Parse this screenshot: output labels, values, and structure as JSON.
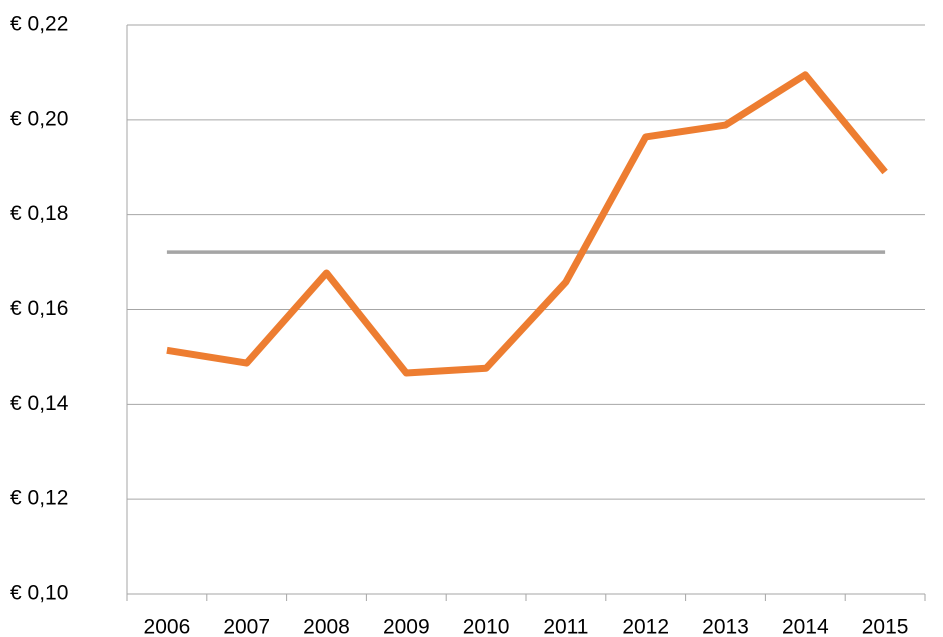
{
  "chart_data": {
    "type": "line",
    "categories": [
      "2006",
      "2007",
      "2008",
      "2009",
      "2010",
      "2011",
      "2012",
      "2013",
      "2014",
      "2015"
    ],
    "series": [
      {
        "color": "#ed7d31",
        "values": [
          0.1514,
          0.1487,
          0.1677,
          0.1466,
          0.1476,
          0.1658,
          0.1964,
          0.1989,
          0.2095,
          0.189
        ]
      },
      {
        "color": "#a5a5a5",
        "values": [
          0.1721,
          0.1721,
          0.1721,
          0.1721,
          0.1721,
          0.1721,
          0.1721,
          0.1721,
          0.1721,
          0.1721
        ]
      }
    ],
    "ylim": [
      0.1,
      0.22
    ],
    "yticks": [
      {
        "value": 0.1,
        "label": "€ 0,10"
      },
      {
        "value": 0.12,
        "label": "€ 0,12"
      },
      {
        "value": 0.14,
        "label": "€ 0,14"
      },
      {
        "value": 0.16,
        "label": "€ 0,16"
      },
      {
        "value": 0.18,
        "label": "€ 0,18"
      },
      {
        "value": 0.2,
        "label": "€ 0,20"
      },
      {
        "value": 0.22,
        "label": "€ 0,22"
      }
    ],
    "grid": true
  }
}
